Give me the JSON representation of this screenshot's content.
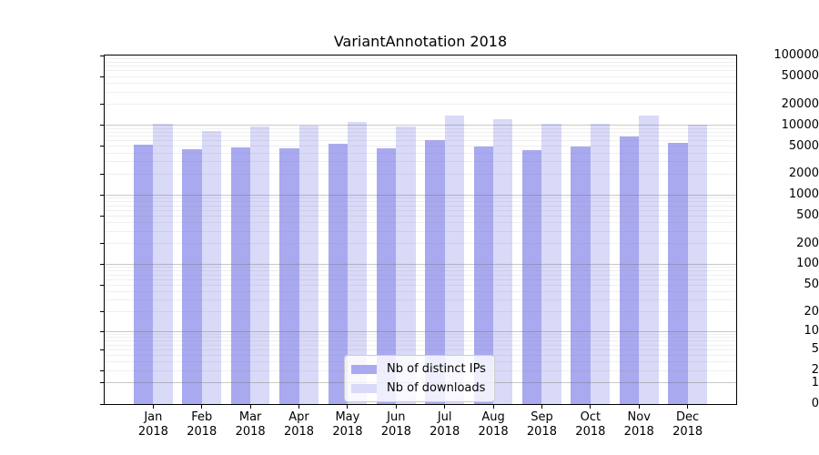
{
  "chart_data": {
    "type": "bar",
    "title": "VariantAnnotation 2018",
    "categories": [
      "Jan 2018",
      "Feb 2018",
      "Mar 2018",
      "Apr 2018",
      "May 2018",
      "Jun 2018",
      "Jul 2018",
      "Aug 2018",
      "Sep 2018",
      "Oct 2018",
      "Nov 2018",
      "Dec 2018"
    ],
    "series": [
      {
        "name": "Nb of distinct IPs",
        "color": "#a9a9f0",
        "values": [
          5300,
          4550,
          4850,
          4700,
          5350,
          4650,
          6050,
          5000,
          4400,
          5000,
          6900,
          5600
        ]
      },
      {
        "name": "Nb of downloads",
        "color": "#d9d9f8",
        "values": [
          10500,
          8200,
          9500,
          9900,
          11300,
          9700,
          13900,
          12300,
          10400,
          10400,
          13600,
          10300
        ]
      }
    ],
    "xlabel": "",
    "ylabel": "",
    "y_scale": "log1p",
    "ylim": [
      0,
      100000
    ],
    "y_ticks": [
      0,
      1,
      2,
      5,
      10,
      20,
      50,
      100,
      200,
      500,
      1000,
      2000,
      5000,
      10000,
      20000,
      50000,
      100000
    ],
    "grid": true,
    "legend_position": "lower center"
  }
}
